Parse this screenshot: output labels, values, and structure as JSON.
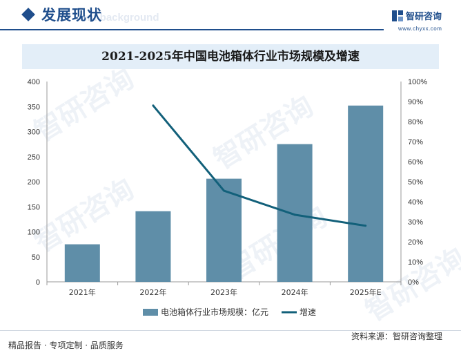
{
  "header": {
    "title": "发展现状",
    "subtitle": "ent background",
    "brand_name": "智研咨询",
    "brand_url": "www.chyxx.com"
  },
  "watermark": "智研咨询",
  "chart_data": {
    "type": "bar",
    "title": "2021-2025年中国电池箱体行业市场规模及增速",
    "categories": [
      "2021年",
      "2022年",
      "2023年",
      "2024年",
      "2025年E"
    ],
    "series": [
      {
        "name": "电池箱体行业市场规模：亿元",
        "type": "bar",
        "axis": "left",
        "color": "#5f8ea8",
        "values": [
          75,
          141,
          206,
          275,
          352
        ]
      },
      {
        "name": "增速",
        "type": "line",
        "axis": "right",
        "color": "#12607a",
        "values": [
          null,
          88,
          45.5,
          33.5,
          28
        ]
      }
    ],
    "y_left": {
      "ticks": [
        "0",
        "50",
        "100",
        "150",
        "200",
        "250",
        "300",
        "350",
        "400"
      ],
      "ylim": [
        0,
        400
      ]
    },
    "y_right": {
      "ticks": [
        "0%",
        "10%",
        "20%",
        "30%",
        "40%",
        "50%",
        "60%",
        "70%",
        "80%",
        "90%",
        "100%"
      ],
      "ylim": [
        0,
        100
      ],
      "unit": "%"
    },
    "legend_position": "bottom",
    "grid": false
  },
  "footer": {
    "tagline": "精品报告 · 专项定制 · 品质服务",
    "source": "资料来源：智研咨询整理"
  },
  "colors": {
    "brand": "#1f4e8c",
    "bar": "#5f8ea8",
    "line": "#12607a",
    "title_band": "#e3eef8"
  }
}
